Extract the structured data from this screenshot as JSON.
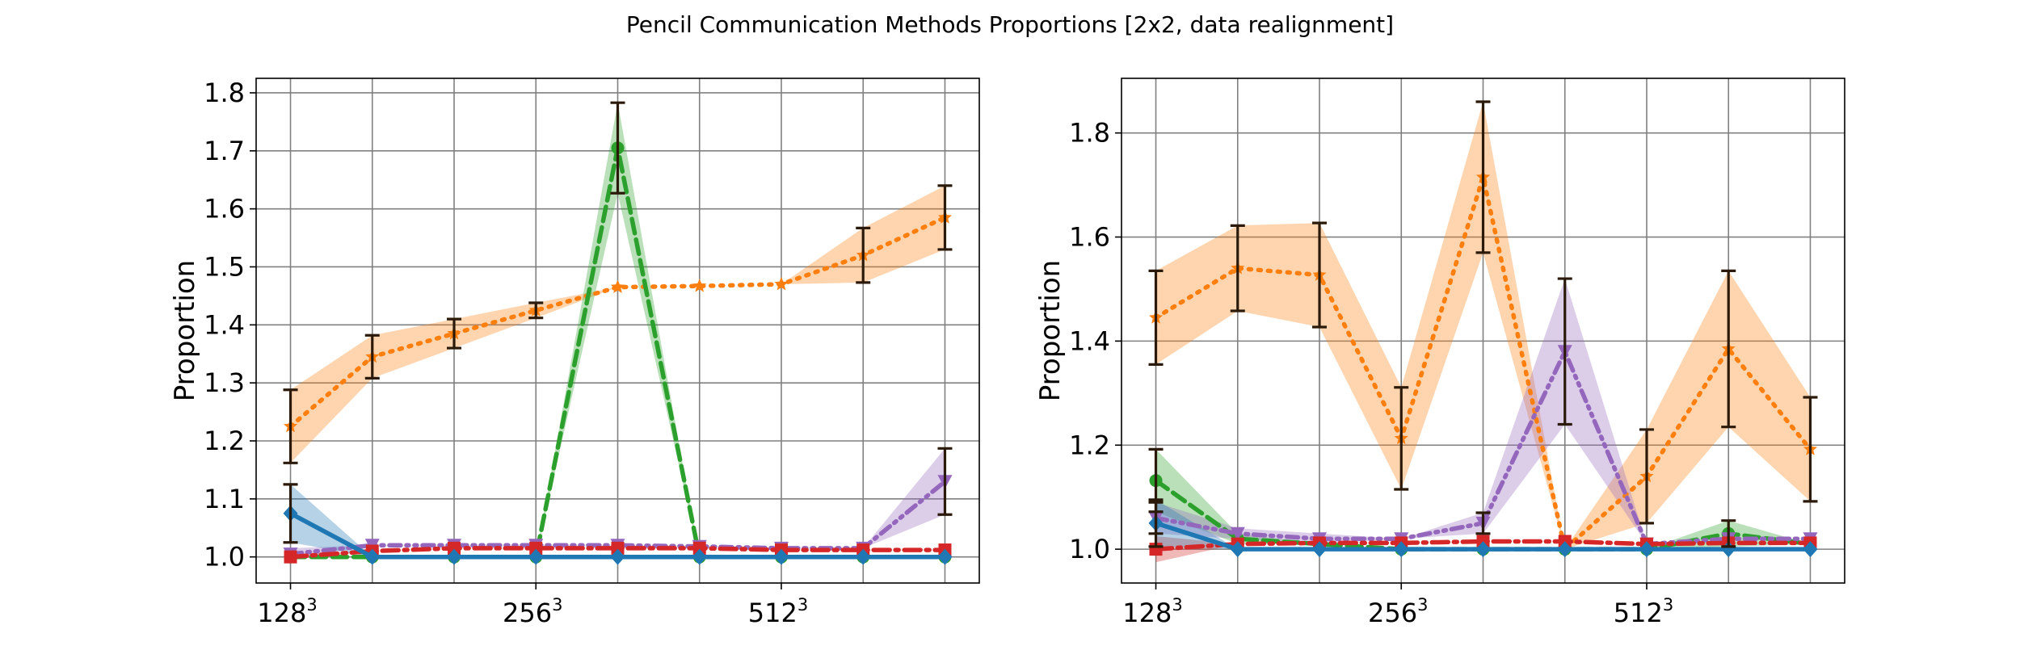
{
  "figure": {
    "title": "Pencil Communication Methods Proportions [2x2, data realignment]"
  },
  "colors": {
    "blue": "#1f77b4",
    "orange": "#ff7f0e",
    "green": "#2ca02c",
    "red": "#d62728",
    "purple": "#9467bd",
    "errorbar": "#2b1a0a"
  },
  "chart_data": [
    {
      "type": "line",
      "title": "",
      "xlabel": "",
      "ylabel": "Proportion",
      "x": [
        0,
        1,
        2,
        3,
        4,
        5,
        6,
        7,
        8
      ],
      "xticks": [
        {
          "x": 0,
          "base": "128",
          "exp": "3"
        },
        {
          "x": 3,
          "base": "256",
          "exp": "3"
        },
        {
          "x": 6,
          "base": "512",
          "exp": "3"
        }
      ],
      "xlim": [
        -0.42,
        8.42
      ],
      "ylim": [
        0.955,
        1.825
      ],
      "yticks": [
        1.0,
        1.1,
        1.2,
        1.3,
        1.4,
        1.5,
        1.6,
        1.7,
        1.8
      ],
      "ytick_labels": [
        "1.0",
        "1.1",
        "1.2",
        "1.3",
        "1.4",
        "1.5",
        "1.6",
        "1.7",
        "1.8"
      ],
      "grid": true,
      "series": [
        {
          "color": "orange",
          "dash": "3 9",
          "marker": "star",
          "values": [
            1.225,
            1.345,
            1.385,
            1.425,
            1.465,
            1.467,
            1.47,
            1.52,
            1.585
          ],
          "errors": [
            0.063,
            0.037,
            0.025,
            0.013,
            0,
            0,
            0,
            0.047,
            0.055
          ],
          "errorbars": [
            true,
            true,
            true,
            true,
            false,
            false,
            false,
            true,
            true
          ]
        },
        {
          "color": "green",
          "dash": "18 8",
          "marker": "circle",
          "values": [
            1.0,
            1.0,
            1.0,
            1.0,
            1.705,
            1.0,
            1.0,
            1.0,
            1.0
          ],
          "errors": [
            0,
            0,
            0,
            0,
            0.078,
            0,
            0,
            0,
            0
          ],
          "errorbars": [
            false,
            false,
            false,
            false,
            true,
            false,
            false,
            false,
            false
          ]
        },
        {
          "color": "purple",
          "dash": "14 7 3 7 3 7",
          "marker": "triangle-down",
          "values": [
            1.005,
            1.02,
            1.02,
            1.02,
            1.02,
            1.018,
            1.015,
            1.015,
            1.13
          ],
          "errors": [
            0.01,
            0,
            0,
            0,
            0,
            0,
            0,
            0,
            0.057
          ],
          "errorbars": [
            false,
            false,
            false,
            false,
            false,
            false,
            false,
            false,
            true
          ]
        },
        {
          "color": "red",
          "dash": "20 7 4 7",
          "marker": "square",
          "values": [
            1.0,
            1.01,
            1.015,
            1.015,
            1.015,
            1.015,
            1.012,
            1.012,
            1.012
          ],
          "errors": [
            0.005,
            0,
            0,
            0,
            0,
            0,
            0,
            0,
            0
          ],
          "errorbars": [
            false,
            false,
            false,
            false,
            false,
            false,
            false,
            false,
            false
          ]
        },
        {
          "color": "blue",
          "dash": "",
          "marker": "diamond",
          "values": [
            1.075,
            1.0,
            1.0,
            1.0,
            1.0,
            1.0,
            1.0,
            1.0,
            1.0
          ],
          "errors": [
            0.05,
            0,
            0,
            0,
            0,
            0,
            0,
            0,
            0
          ],
          "errorbars": [
            true,
            false,
            false,
            false,
            false,
            false,
            false,
            false,
            false
          ]
        }
      ]
    },
    {
      "type": "line",
      "title": "",
      "xlabel": "",
      "ylabel": "Proportion",
      "x": [
        0,
        1,
        2,
        3,
        4,
        5,
        6,
        7,
        8
      ],
      "xticks": [
        {
          "x": 0,
          "base": "128",
          "exp": "3"
        },
        {
          "x": 3,
          "base": "256",
          "exp": "3"
        },
        {
          "x": 6,
          "base": "512",
          "exp": "3"
        }
      ],
      "xlim": [
        -0.42,
        8.42
      ],
      "ylim": [
        0.935,
        1.905
      ],
      "yticks": [
        1.0,
        1.2,
        1.4,
        1.6,
        1.8
      ],
      "ytick_labels": [
        "1.0",
        "1.2",
        "1.4",
        "1.6",
        "1.8"
      ],
      "grid": true,
      "series": [
        {
          "color": "orange",
          "dash": "3 9",
          "marker": "star",
          "values": [
            1.445,
            1.54,
            1.527,
            1.213,
            1.715,
            1.0,
            1.14,
            1.385,
            1.192
          ],
          "errors": [
            0.09,
            0.082,
            0.1,
            0.098,
            0.145,
            0,
            0.09,
            0.15,
            0.1
          ],
          "errorbars": [
            true,
            true,
            true,
            true,
            true,
            false,
            true,
            true,
            true
          ]
        },
        {
          "color": "green",
          "dash": "18 8",
          "marker": "circle",
          "values": [
            1.132,
            1.02,
            1.01,
            1.0,
            1.0,
            1.0,
            1.0,
            1.03,
            1.01
          ],
          "errors": [
            0.06,
            0.01,
            0,
            0,
            0,
            0,
            0,
            0.025,
            0
          ],
          "errorbars": [
            true,
            false,
            false,
            false,
            false,
            false,
            false,
            true,
            false
          ]
        },
        {
          "color": "purple",
          "dash": "14 7 3 7 3 7",
          "marker": "triangle-down",
          "values": [
            1.06,
            1.03,
            1.02,
            1.02,
            1.05,
            1.38,
            1.01,
            1.02,
            1.02
          ],
          "errors": [
            0.03,
            0.01,
            0.01,
            0,
            0.02,
            0.14,
            0,
            0,
            0
          ],
          "errorbars": [
            true,
            false,
            false,
            false,
            true,
            true,
            false,
            false,
            false
          ]
        },
        {
          "color": "red",
          "dash": "20 7 4 7",
          "marker": "square",
          "values": [
            1.0,
            1.01,
            1.012,
            1.012,
            1.015,
            1.015,
            1.01,
            1.012,
            1.012
          ],
          "errors": [
            0.025,
            0,
            0,
            0,
            0,
            0,
            0,
            0,
            0
          ],
          "errorbars": [
            false,
            false,
            false,
            false,
            false,
            false,
            false,
            false,
            false
          ]
        },
        {
          "color": "blue",
          "dash": "",
          "marker": "diamond",
          "values": [
            1.05,
            1.0,
            1.0,
            1.0,
            1.0,
            1.0,
            1.0,
            1.0,
            1.0
          ],
          "errors": [
            0.045,
            0,
            0,
            0,
            0,
            0,
            0,
            0,
            0
          ],
          "errorbars": [
            true,
            false,
            false,
            false,
            false,
            false,
            false,
            false,
            false
          ]
        }
      ]
    }
  ]
}
